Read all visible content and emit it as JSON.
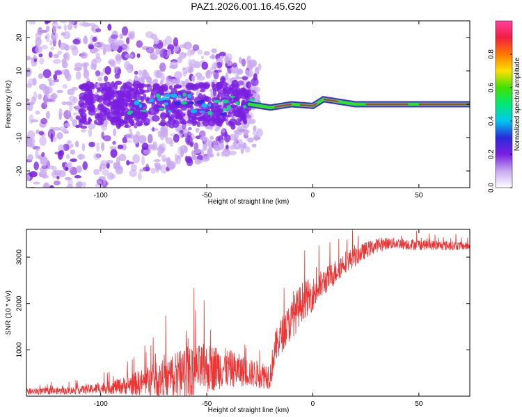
{
  "figure": {
    "title": "PAZ1.2026.001.16.45.G20"
  },
  "chart_data": [
    {
      "type": "heatmap",
      "title": "PAZ1.2026.001.16.45.G20",
      "xlabel": "Height of straight line (km)",
      "ylabel": "Frequency (Hz)",
      "xlim": [
        -135,
        74
      ],
      "ylim": [
        -25,
        25
      ],
      "xticks": [
        -100,
        -50,
        0,
        50
      ],
      "yticks": [
        -20,
        -10,
        0,
        10,
        20
      ],
      "xtick_labels": [
        "-100",
        "-50",
        "0",
        "50"
      ],
      "ytick_labels": [
        "-20",
        "-10",
        "0",
        "10",
        "20"
      ],
      "colorbar": {
        "label": "Normalized spectral amplitude",
        "range": [
          0,
          1
        ],
        "ticks": [
          0.0,
          0.2,
          0.4,
          0.6,
          0.8
        ],
        "tick_labels": [
          "0.0",
          "0.2",
          "0.4",
          "0.6",
          "0.8"
        ],
        "colors": [
          "#ffffff",
          "#c8a8f0",
          "#7a1fe0",
          "#2a2ad8",
          "#00c8f0",
          "#00e878",
          "#40e000",
          "#ffe000",
          "#ff7800",
          "#f02040",
          "#ff40a0"
        ]
      },
      "description_values": {
        "signal_line": {
          "from_km": -30,
          "to_km": 74,
          "frequency_hz_approx": [
            [
              -30,
              0
            ],
            [
              -20,
              -1
            ],
            [
              -10,
              0
            ],
            [
              0,
              -0.5
            ],
            [
              5,
              1.5
            ],
            [
              10,
              1
            ],
            [
              20,
              0
            ],
            [
              74,
              0
            ]
          ]
        },
        "noise_region_km": [
          -135,
          -30
        ],
        "noise_spread_hz": 25
      }
    },
    {
      "type": "line",
      "xlabel": "Height of straight line (km)",
      "ylabel": "SNR (10 * v/v)",
      "xlim": [
        -135,
        74
      ],
      "ylim": [
        0,
        3600
      ],
      "xticks": [
        -100,
        -50,
        0,
        50
      ],
      "yticks": [
        1000,
        2000,
        3000
      ],
      "xtick_labels": [
        "-100",
        "-50",
        "0",
        "50"
      ],
      "ytick_labels": [
        "1000",
        "2000",
        "3000"
      ],
      "color": "#ee3333",
      "series": [
        {
          "name": "SNR",
          "x": [
            -135,
            -120,
            -110,
            -100,
            -90,
            -80,
            -70,
            -65,
            -60,
            -55,
            -50,
            -45,
            -40,
            -35,
            -30,
            -25,
            -20,
            -18,
            -15,
            -10,
            -8,
            -5,
            0,
            5,
            10,
            15,
            20,
            25,
            30,
            35,
            40,
            45,
            50,
            55,
            60,
            65,
            70,
            74
          ],
          "mean": [
            100,
            110,
            130,
            170,
            220,
            300,
            380,
            450,
            520,
            560,
            600,
            620,
            600,
            560,
            500,
            470,
            450,
            1000,
            1300,
            1650,
            1800,
            2050,
            2200,
            2450,
            2650,
            2900,
            3000,
            3150,
            3250,
            3300,
            3300,
            3280,
            3270,
            3260,
            3250,
            3250,
            3240,
            3240
          ],
          "spread": [
            120,
            120,
            140,
            200,
            300,
            500,
            700,
            900,
            1050,
            900,
            900,
            800,
            700,
            600,
            500,
            500,
            500,
            600,
            650,
            700,
            750,
            700,
            600,
            500,
            450,
            400,
            350,
            300,
            250,
            220,
            200,
            200,
            200,
            180,
            180,
            180,
            150,
            150
          ]
        }
      ]
    }
  ]
}
